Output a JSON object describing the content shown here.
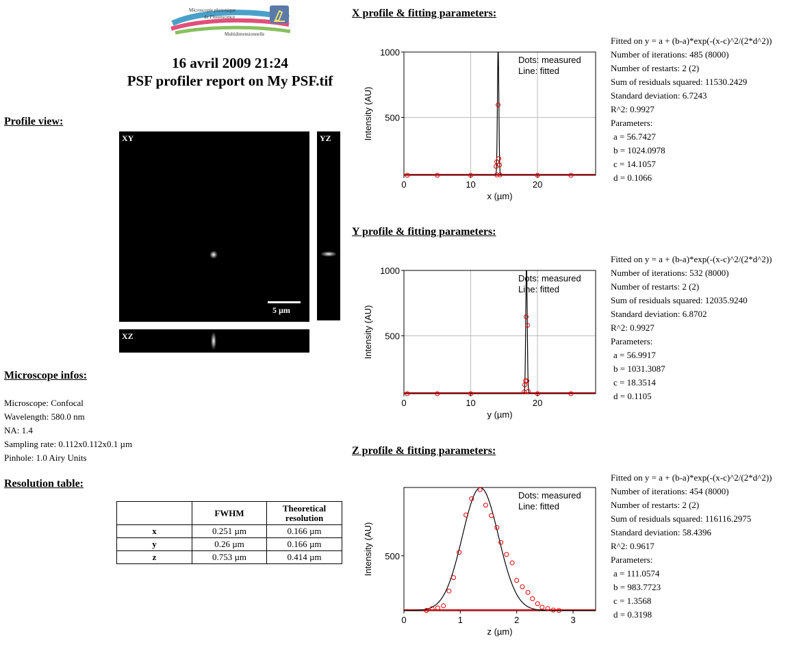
{
  "logo": {
    "line1": "Microscopie photonique",
    "line2": "de Fluorescence",
    "line3": "Multidimensionnelle"
  },
  "header": {
    "date": "16 avril 2009 21:24",
    "report_title": "PSF profiler report on My PSF.tif"
  },
  "profile_view": {
    "title": "Profile view:",
    "xy_label": "XY",
    "yz_label": "YZ",
    "xz_label": "XZ",
    "scale_bar_label": "5 µm"
  },
  "microscope": {
    "title": "Microscope infos:",
    "lines": [
      "Microscope: Confocal",
      "Wavelength: 580.0 nm",
      "NA: 1.4",
      "Sampling rate: 0.112x0.112x0.1 µm",
      "Pinhole: 1.0 Airy Units"
    ]
  },
  "resolution": {
    "title": "Resolution table:",
    "headers": [
      "",
      "FWHM",
      "Theoretical resolution"
    ],
    "rows": [
      [
        "x",
        "0.251 µm",
        "0.166 µm"
      ],
      [
        "y",
        "0.26 µm",
        "0.166 µm"
      ],
      [
        "z",
        "0.753 µm",
        "0.414 µm"
      ]
    ]
  },
  "profiles": [
    {
      "title": "X profile & fitting parameters:",
      "fit_lines": [
        "Fitted on y = a + (b-a)*exp(-(x-c)^2/(2*d^2))",
        "Number of iterations: 485 (8000)",
        "Number of restarts: 2 (2)",
        "Sum of residuals squared: 11530.2429",
        "Standard deviation: 6.7243",
        "R^2: 0.9927",
        "Parameters:",
        " a = 56.7427",
        " b = 1024.0978",
        " c = 14.1057",
        " d = 0.1066"
      ]
    },
    {
      "title": "Y profile & fitting parameters:",
      "fit_lines": [
        "Fitted on y = a + (b-a)*exp(-(x-c)^2/(2*d^2))",
        "Number of iterations: 532 (8000)",
        "Number of restarts: 2 (2)",
        "Sum of residuals squared: 12035.9240",
        "Standard deviation: 6.8702",
        "R^2: 0.9927",
        "Parameters:",
        " a = 56.9917",
        " b = 1031.3087",
        " c = 18.3514",
        " d = 0.1105"
      ]
    },
    {
      "title": "Z profile & fitting parameters:",
      "fit_lines": [
        "Fitted on y = a + (b-a)*exp(-(x-c)^2/(2*d^2))",
        "Number of iterations: 454 (8000)",
        "Number of restarts: 2 (2)",
        "Sum of residuals squared: 116116.2975",
        "Standard deviation: 58.4396",
        "R^2: 0.9617",
        "Parameters:",
        " a = 111.0574",
        " b = 983.7723",
        " c = 1.3568",
        " d = 0.3198"
      ]
    }
  ],
  "chart_data": [
    {
      "type": "scatter",
      "xlabel": "x (µm)",
      "ylabel": "Intensity (AU)",
      "legend": [
        "Dots: measured",
        "Line: fitted"
      ],
      "legend_position": "top-right",
      "grid": true,
      "xlim": [
        0,
        28.7
      ],
      "ylim": [
        57,
        1000
      ],
      "xticks": [
        0,
        10,
        20
      ],
      "yticks": [
        500,
        1000
      ],
      "fit": {
        "a": 56.7427,
        "b": 1024.0978,
        "c": 14.1057,
        "d": 0.1066
      },
      "measured": [
        [
          13.8,
          125
        ],
        [
          13.9,
          160
        ],
        [
          14.1,
          595
        ],
        [
          14.2,
          185
        ],
        [
          14.3,
          135
        ],
        [
          13.9,
          60
        ],
        [
          14.4,
          60
        ],
        [
          0.5,
          57
        ],
        [
          5,
          57
        ],
        [
          10,
          57
        ],
        [
          20,
          57
        ],
        [
          25,
          57
        ]
      ]
    },
    {
      "type": "scatter",
      "xlabel": "y (µm)",
      "ylabel": "Intensity (AU)",
      "legend": [
        "Dots: measured",
        "Line: fitted"
      ],
      "legend_position": "top-right",
      "grid": true,
      "xlim": [
        0,
        28.7
      ],
      "ylim": [
        57,
        1000
      ],
      "xticks": [
        0,
        10,
        20
      ],
      "yticks": [
        500,
        1000
      ],
      "fit": {
        "a": 56.9917,
        "b": 1031.3087,
        "c": 18.3514,
        "d": 0.1105
      },
      "measured": [
        [
          18.1,
          125
        ],
        [
          18.2,
          155
        ],
        [
          18.3,
          645
        ],
        [
          18.5,
          580
        ],
        [
          18.4,
          155
        ],
        [
          18.6,
          75
        ],
        [
          18.0,
          70
        ],
        [
          0.5,
          57
        ],
        [
          5,
          57
        ],
        [
          10,
          57
        ],
        [
          20,
          57
        ],
        [
          25,
          57
        ]
      ]
    },
    {
      "type": "scatter",
      "xlabel": "z (µm)",
      "ylabel": "Intensity (AU)",
      "legend": [
        "Dots: measured",
        "Line: fitted"
      ],
      "legend_position": "top-right",
      "grid": false,
      "xlim": [
        0,
        3.4
      ],
      "ylim": [
        110,
        985
      ],
      "xticks": [
        0,
        1,
        2,
        3
      ],
      "yticks": [
        500
      ],
      "fit": {
        "a": 111.0574,
        "b": 983.7723,
        "c": 1.3568,
        "d": 0.3198
      },
      "measured": [
        [
          0.4,
          112
        ],
        [
          0.5,
          125
        ],
        [
          0.6,
          130
        ],
        [
          0.7,
          145
        ],
        [
          0.8,
          250
        ],
        [
          0.88,
          345
        ],
        [
          0.98,
          525
        ],
        [
          1.1,
          790
        ],
        [
          1.2,
          905
        ],
        [
          1.35,
          970
        ],
        [
          1.45,
          860
        ],
        [
          1.55,
          785
        ],
        [
          1.65,
          700
        ],
        [
          1.72,
          595
        ],
        [
          1.82,
          510
        ],
        [
          1.92,
          450
        ],
        [
          2.0,
          325
        ],
        [
          2.1,
          280
        ],
        [
          2.2,
          240
        ],
        [
          2.28,
          195
        ],
        [
          2.37,
          160
        ],
        [
          2.45,
          135
        ],
        [
          2.55,
          125
        ],
        [
          2.65,
          115
        ],
        [
          2.75,
          112
        ]
      ]
    }
  ]
}
